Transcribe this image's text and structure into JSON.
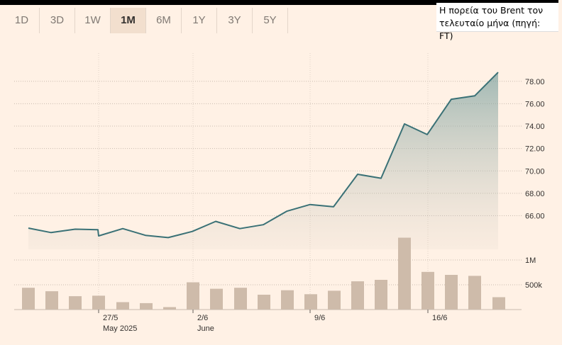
{
  "tabs": [
    "1D",
    "3D",
    "1W",
    "1M",
    "6M",
    "1Y",
    "3Y",
    "5Y"
  ],
  "active_tab": "1M",
  "caption": {
    "line1": "Η πορεία του Brent τον",
    "line2": "τελευταίο μήνα (πηγή: FT)"
  },
  "colors": {
    "line": "#3a7176",
    "bar": "#cebbaa",
    "background": "#fff1e5"
  },
  "chart_data": {
    "type": "line",
    "price": {
      "values": [
        64.9,
        64.5,
        64.8,
        64.75,
        64.2,
        64.85,
        64.25,
        64.05,
        64.6,
        65.5,
        64.85,
        65.2,
        66.4,
        67.0,
        66.8,
        69.7,
        69.35,
        74.2,
        73.25,
        76.4,
        76.7,
        78.8
      ],
      "yticks": [
        66,
        68,
        70,
        72,
        74,
        76,
        78
      ],
      "ytick_labels": [
        "66.00",
        "68.00",
        "70.00",
        "72.00",
        "74.00",
        "76.00",
        "78.00"
      ],
      "ylim": [
        63.0,
        80.2
      ]
    },
    "volume": {
      "values": [
        440000,
        370000,
        270000,
        280000,
        150000,
        130000,
        50000,
        550000,
        420000,
        440000,
        300000,
        390000,
        310000,
        380000,
        570000,
        600000,
        1450000,
        760000,
        700000,
        680000,
        250000
      ],
      "yticks": [
        500000,
        1000000
      ],
      "ytick_labels": [
        "500k",
        "1M"
      ]
    },
    "x_labels": [
      {
        "day": "27/5",
        "month": "May 2025"
      },
      {
        "day": "2/6",
        "month": "June"
      },
      {
        "day": "9/6",
        "month": ""
      },
      {
        "day": "16/6",
        "month": ""
      }
    ]
  }
}
